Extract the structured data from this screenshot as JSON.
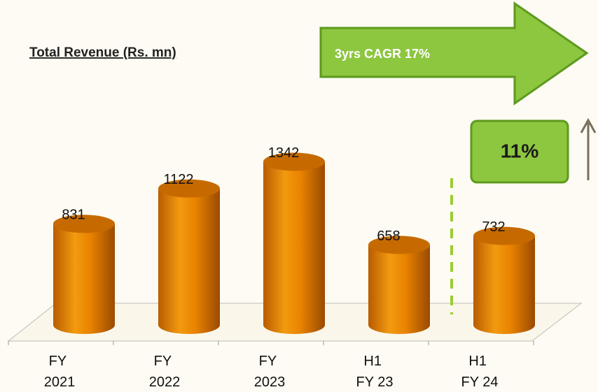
{
  "chart_data": {
    "type": "bar",
    "title": "Total Revenue  (Rs. mn)",
    "categories": [
      "FY 2021",
      "FY 2022",
      "FY 2023",
      "H1 FY 23",
      "H1 FY 24"
    ],
    "values": [
      831,
      1122,
      1342,
      658,
      732
    ],
    "color": "#e98300",
    "annotations": {
      "cagr": "3yrs CAGR 17%",
      "growth": "11%"
    }
  }
}
